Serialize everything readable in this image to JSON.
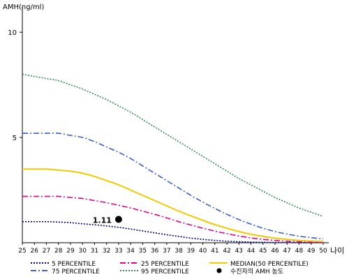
{
  "chart_data": {
    "type": "line",
    "ylabel": "AMH(ng/ml)",
    "xlabel": "나이",
    "xlim": [
      25,
      50
    ],
    "ylim": [
      0,
      11
    ],
    "x_ticks": [
      25,
      26,
      27,
      28,
      29,
      30,
      31,
      32,
      33,
      34,
      35,
      36,
      37,
      38,
      39,
      40,
      41,
      42,
      43,
      44,
      45,
      46,
      47,
      48,
      49,
      50
    ],
    "y_ticks": [
      5,
      10
    ],
    "grid": false,
    "legend_position": "bottom",
    "x": [
      25,
      26,
      27,
      28,
      29,
      30,
      31,
      32,
      33,
      34,
      35,
      36,
      37,
      38,
      39,
      40,
      41,
      42,
      43,
      44,
      45,
      46,
      47,
      48,
      49,
      50
    ],
    "series": [
      {
        "name": "5 PERCENTILE",
        "color": "#000080",
        "dash": "dotted",
        "values": [
          1.0,
          1.0,
          1.0,
          0.98,
          0.95,
          0.9,
          0.85,
          0.8,
          0.73,
          0.65,
          0.56,
          0.47,
          0.38,
          0.3,
          0.22,
          0.16,
          0.11,
          0.07,
          0.05,
          0.03,
          0.02,
          0.01,
          0.01,
          0.0,
          0.0,
          0.0
        ]
      },
      {
        "name": "25 PERCENTILE",
        "color": "#e0008c",
        "dash": "dashdot",
        "values": [
          2.2,
          2.2,
          2.2,
          2.2,
          2.15,
          2.1,
          2.0,
          1.9,
          1.78,
          1.65,
          1.5,
          1.35,
          1.18,
          1.0,
          0.84,
          0.69,
          0.55,
          0.43,
          0.32,
          0.23,
          0.16,
          0.11,
          0.07,
          0.05,
          0.03,
          0.02
        ]
      },
      {
        "name": "MEDIAN(50 PERCENTILE)",
        "color": "#f2c800",
        "dash": "solid",
        "values": [
          3.5,
          3.5,
          3.5,
          3.45,
          3.4,
          3.3,
          3.15,
          2.95,
          2.75,
          2.5,
          2.25,
          2.0,
          1.75,
          1.5,
          1.28,
          1.06,
          0.86,
          0.69,
          0.53,
          0.4,
          0.3,
          0.22,
          0.16,
          0.11,
          0.08,
          0.06
        ]
      },
      {
        "name": "75 PERCENTILE",
        "color": "#3a5cc5",
        "dash": "dashdot",
        "values": [
          5.2,
          5.2,
          5.2,
          5.2,
          5.1,
          5.0,
          4.8,
          4.55,
          4.3,
          4.0,
          3.65,
          3.3,
          2.95,
          2.6,
          2.25,
          1.93,
          1.63,
          1.35,
          1.1,
          0.88,
          0.69,
          0.53,
          0.41,
          0.31,
          0.24,
          0.18
        ]
      },
      {
        "name": "95 PERCENTILE",
        "color": "#2e8b57",
        "dash": "dotted",
        "values": [
          8.0,
          7.9,
          7.8,
          7.7,
          7.5,
          7.3,
          7.05,
          6.8,
          6.5,
          6.2,
          5.85,
          5.5,
          5.15,
          4.8,
          4.45,
          4.1,
          3.75,
          3.4,
          3.05,
          2.75,
          2.45,
          2.15,
          1.9,
          1.65,
          1.45,
          1.25
        ]
      }
    ],
    "marker": {
      "name": "수진자의 AMH 농도",
      "x": 33,
      "y": 1.11,
      "label": "1.11",
      "color": "#000000"
    }
  }
}
